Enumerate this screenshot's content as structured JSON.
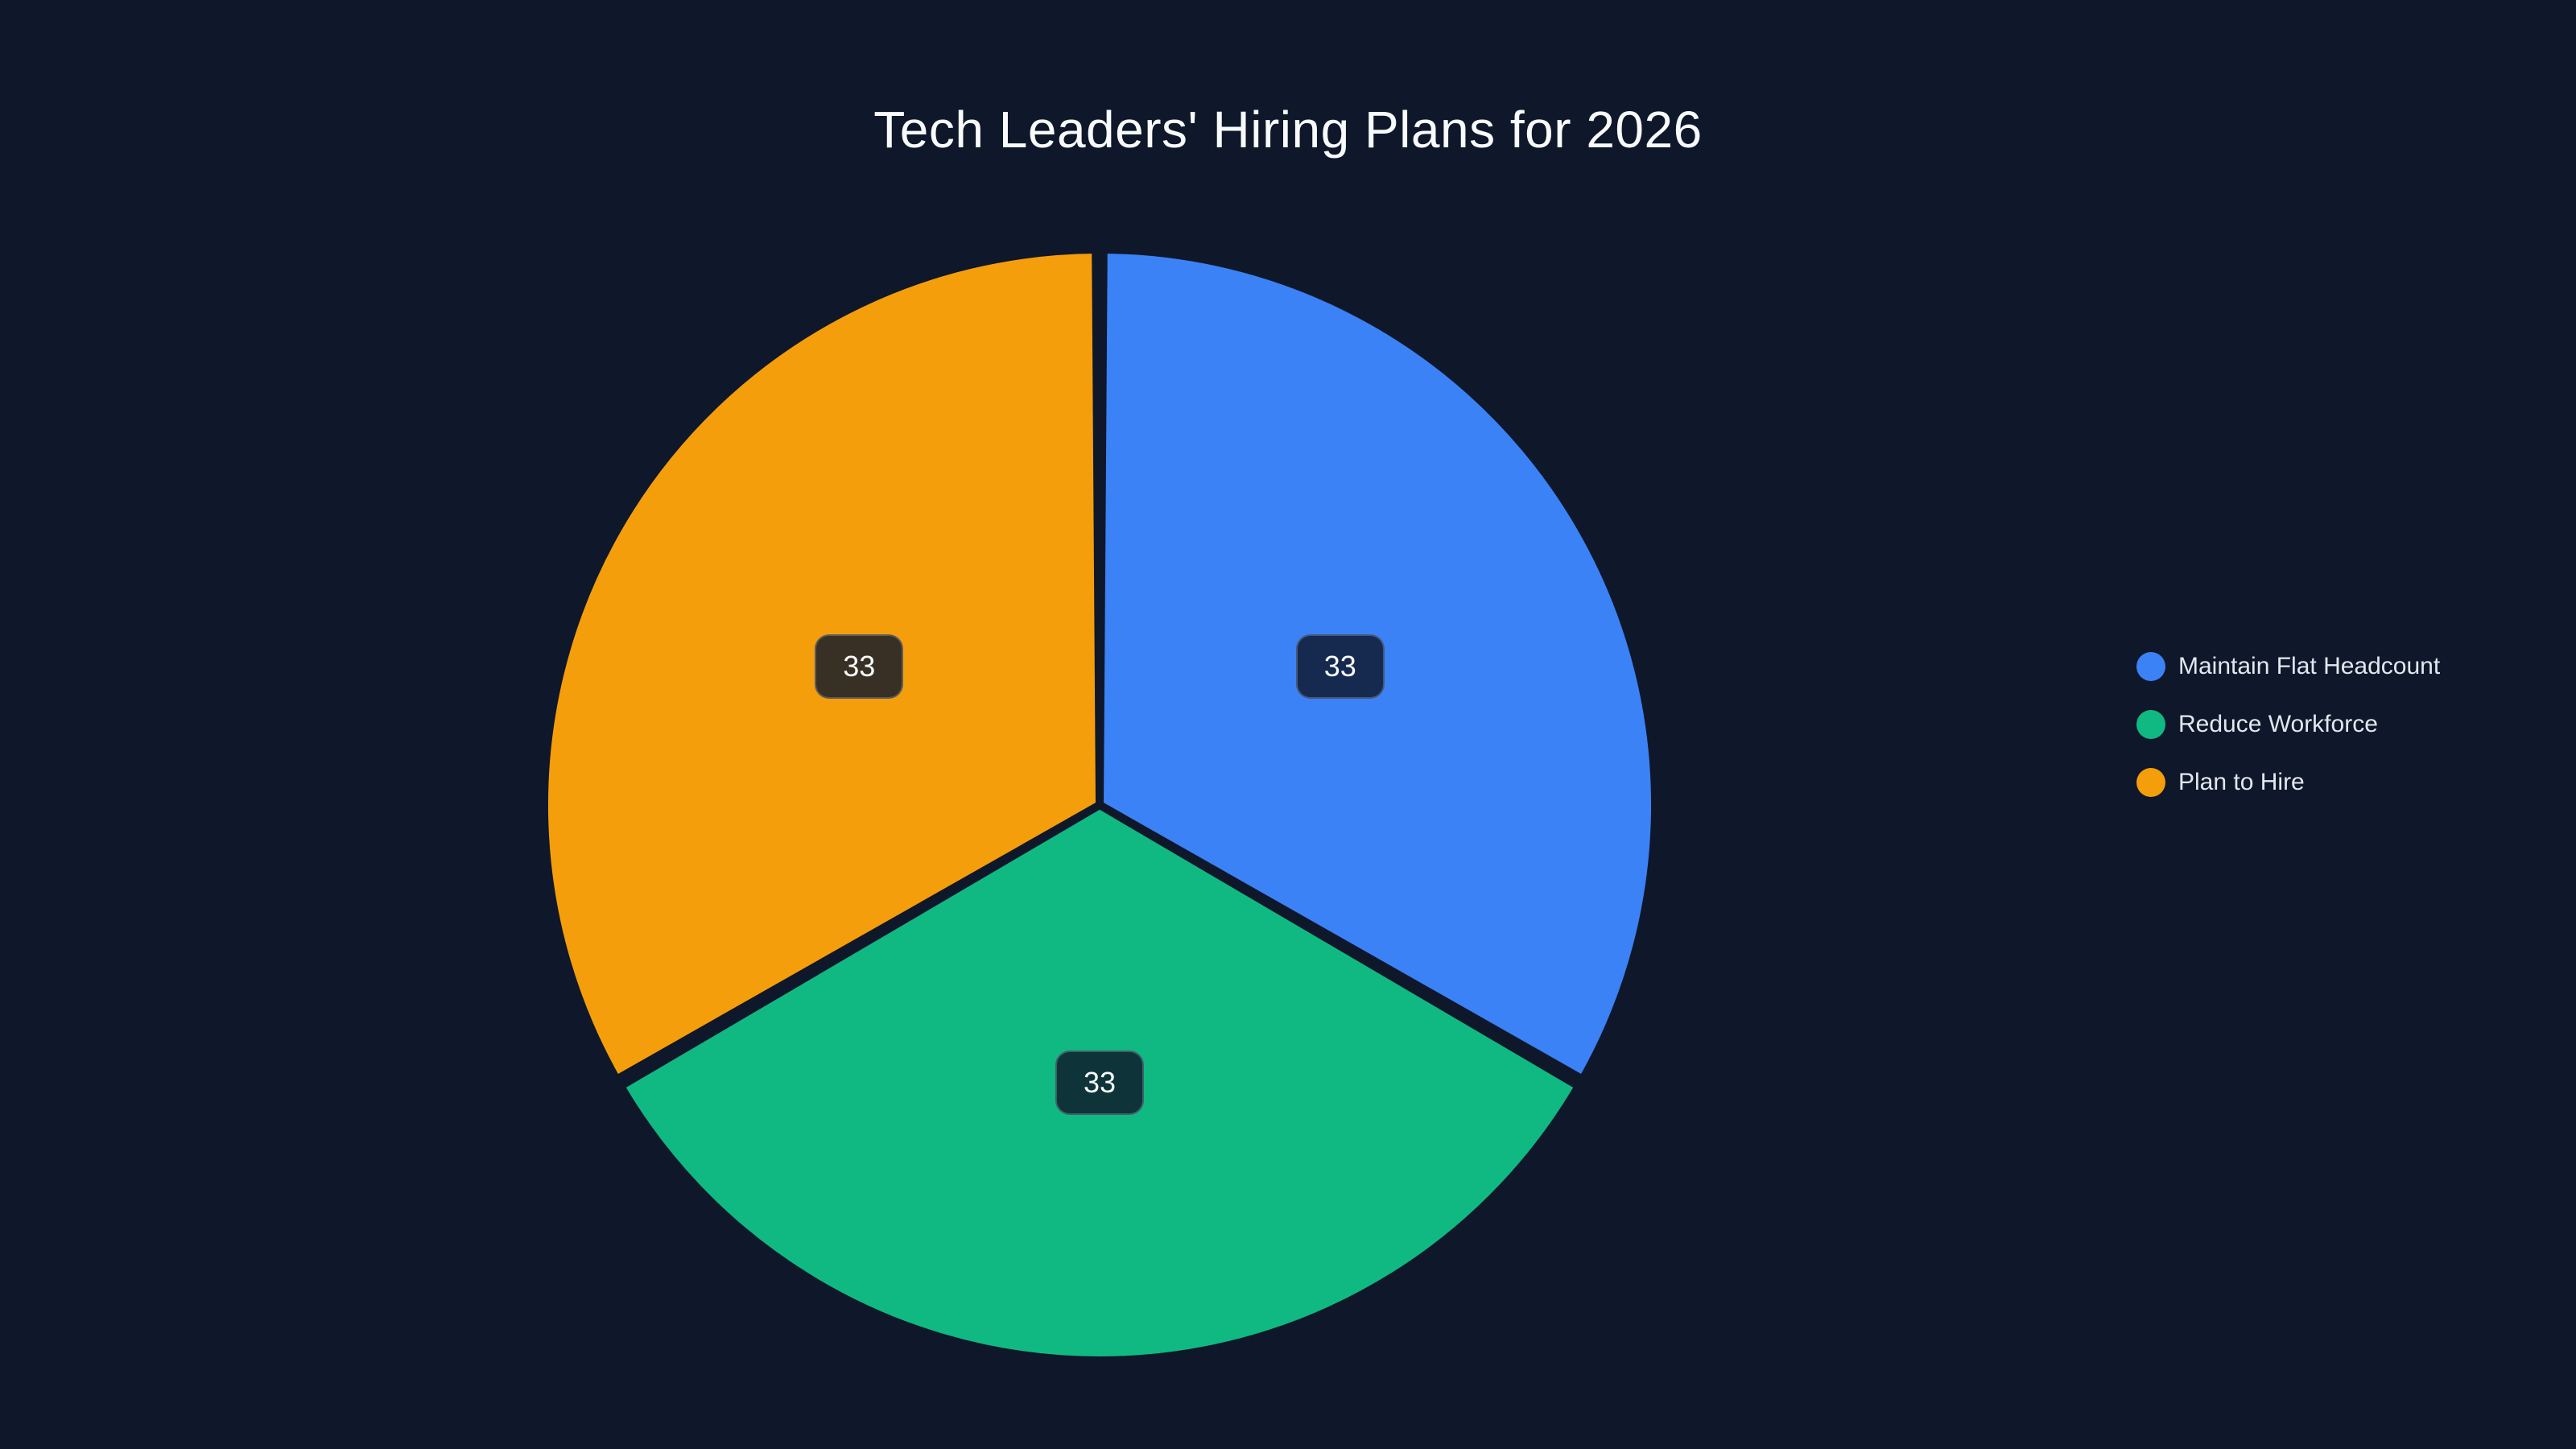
{
  "page": {
    "background_color": "#0f172a"
  },
  "chart_data": {
    "type": "pie",
    "title": "Tech Leaders' Hiring Plans for 2026",
    "title_color": "#f8fafc",
    "categories": [
      "Maintain Flat Headcount",
      "Reduce Workforce",
      "Plan to Hire"
    ],
    "values": [
      33,
      33,
      33
    ],
    "data_labels": [
      "33",
      "33",
      "33"
    ],
    "colors": [
      "#3b82f6",
      "#10b981",
      "#f59e0b"
    ],
    "slice_border_color": "#0f172a",
    "label_box": {
      "background": "rgba(15, 23, 42, 0.82)",
      "text_color": "#f8fafc"
    },
    "legend": {
      "position": "right",
      "marker": "circle",
      "text_color": "#e2e8f0"
    },
    "start_angle": "12-oclock",
    "direction": "clockwise"
  }
}
